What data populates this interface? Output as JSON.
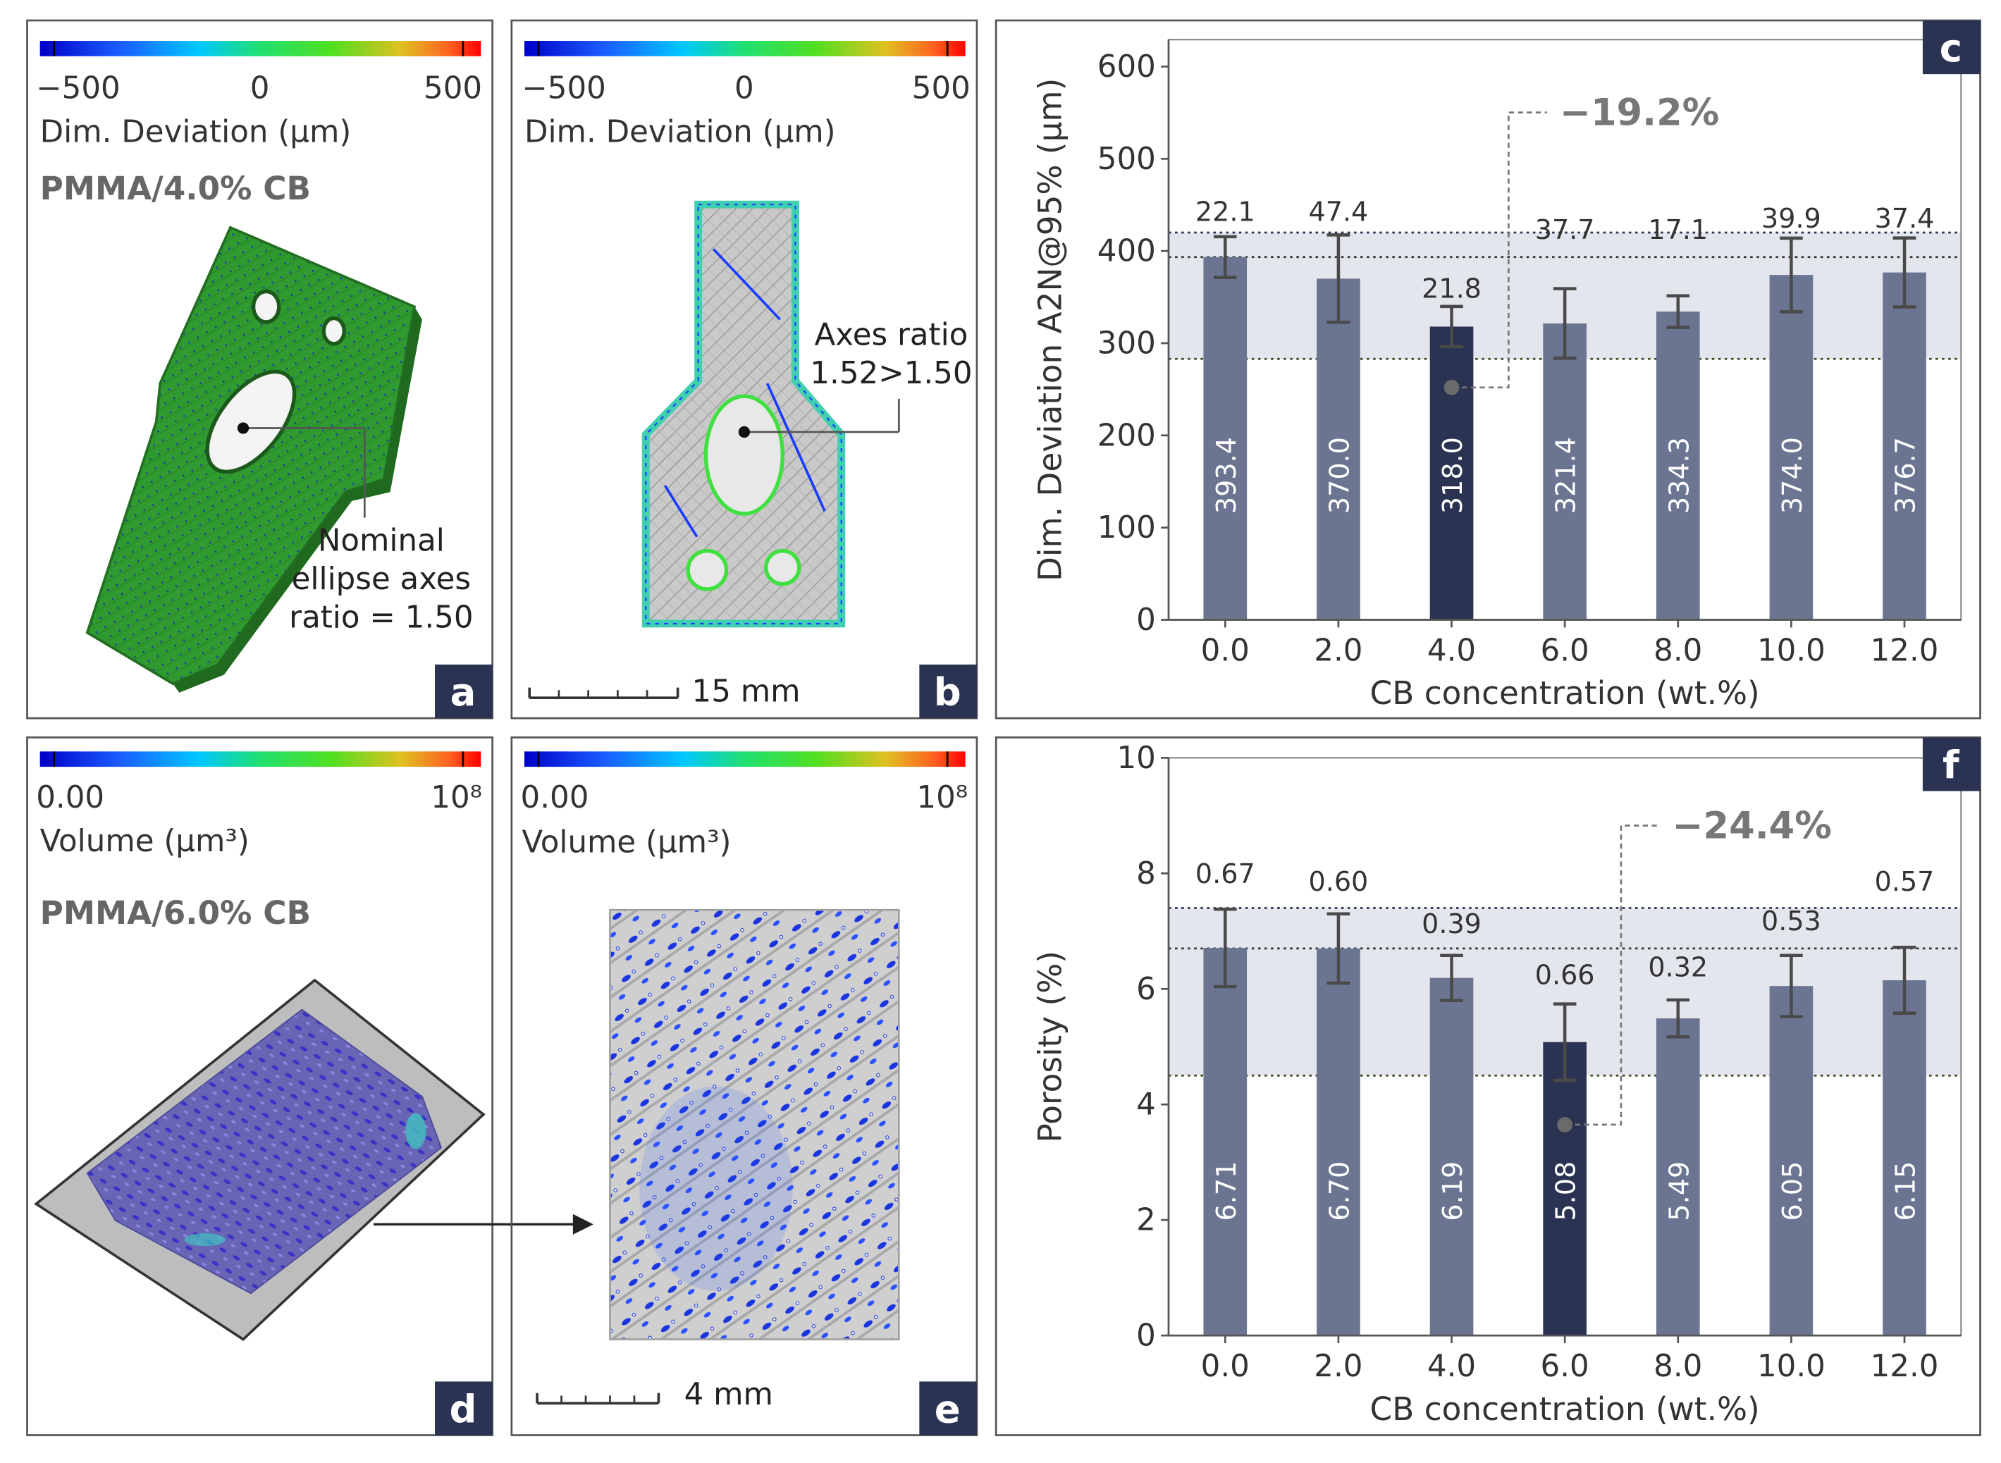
{
  "colors": {
    "bar": "#6b7592",
    "bar_highlight": "#2a3352",
    "band": "#e4e6ee",
    "panel_border": "#555555",
    "label_box": "#2a3352",
    "mesh_green": "#2f9a2f",
    "mesh_dark": "#226f22",
    "annotation_gray": "#777777"
  },
  "panel_a": {
    "label": "a",
    "colorbar_ticks": [
      "−500",
      "0",
      "500"
    ],
    "colorbar_title": "Dim. Deviation (µm)",
    "sample": "PMMA/4.0% CB",
    "callout": [
      "Nominal",
      "ellipse axes",
      "ratio = 1.50"
    ]
  },
  "panel_b": {
    "label": "b",
    "colorbar_ticks": [
      "−500",
      "0",
      "500"
    ],
    "colorbar_title": "Dim. Deviation (µm)",
    "callout": [
      "Axes ratio",
      "1.52>1.50"
    ],
    "scale_bar": "15 mm"
  },
  "panel_d": {
    "label": "d",
    "colorbar_min": "0.00",
    "colorbar_max": "10⁸",
    "colorbar_title": "Volume (µm³)",
    "sample": "PMMA/6.0% CB"
  },
  "panel_e": {
    "label": "e",
    "colorbar_min": "0.00",
    "colorbar_max": "10⁸",
    "colorbar_title": "Volume (µm³)",
    "scale_bar": "4 mm"
  },
  "chart_data": [
    {
      "panel": "c",
      "type": "bar",
      "xlabel": "CB concentration (wt.%)",
      "ylabel": "Dim. Deviation A2N@95% (µm)",
      "ylim": [
        0,
        650
      ],
      "yticks": [
        "0",
        "100",
        "200",
        "300",
        "400",
        "500",
        "600"
      ],
      "categories": [
        "0.0",
        "2.0",
        "4.0",
        "6.0",
        "8.0",
        "10.0",
        "12.0"
      ],
      "values": [
        393.4,
        370.0,
        318.0,
        321.4,
        334.3,
        374.0,
        376.7
      ],
      "value_labels": [
        "393.4",
        "370.0",
        "318.0",
        "321.4",
        "334.3",
        "374.0",
        "376.7"
      ],
      "errors": [
        22.1,
        47.4,
        21.8,
        37.7,
        17.1,
        39.9,
        37.4
      ],
      "error_labels": [
        "22.1",
        "47.4",
        "21.8",
        "37.7",
        "17.1",
        "39.9",
        "37.4"
      ],
      "highlight_index": 2,
      "band": [
        283,
        420
      ],
      "reference_line": 393.4,
      "annotation": "−19.2%",
      "annotation_point": 252
    },
    {
      "panel": "f",
      "type": "bar",
      "xlabel": "CB concentration (wt.%)",
      "ylabel": "Porosity (%)",
      "ylim": [
        0,
        10
      ],
      "yticks": [
        "0",
        "2",
        "4",
        "6",
        "8",
        "10"
      ],
      "categories": [
        "0.0",
        "2.0",
        "4.0",
        "6.0",
        "8.0",
        "10.0",
        "12.0"
      ],
      "values": [
        6.71,
        6.7,
        6.19,
        5.08,
        5.49,
        6.05,
        6.15
      ],
      "value_labels": [
        "6.71",
        "6.70",
        "6.19",
        "5.08",
        "5.49",
        "6.05",
        "6.15"
      ],
      "errors": [
        0.67,
        0.6,
        0.39,
        0.66,
        0.32,
        0.53,
        0.57
      ],
      "error_labels": [
        "0.67",
        "0.60",
        "0.39",
        "0.66",
        "0.32",
        "0.53",
        "0.57"
      ],
      "highlight_index": 3,
      "band": [
        4.5,
        7.4
      ],
      "reference_line": 6.7,
      "annotation": "−24.4%",
      "annotation_point": 3.65
    }
  ]
}
